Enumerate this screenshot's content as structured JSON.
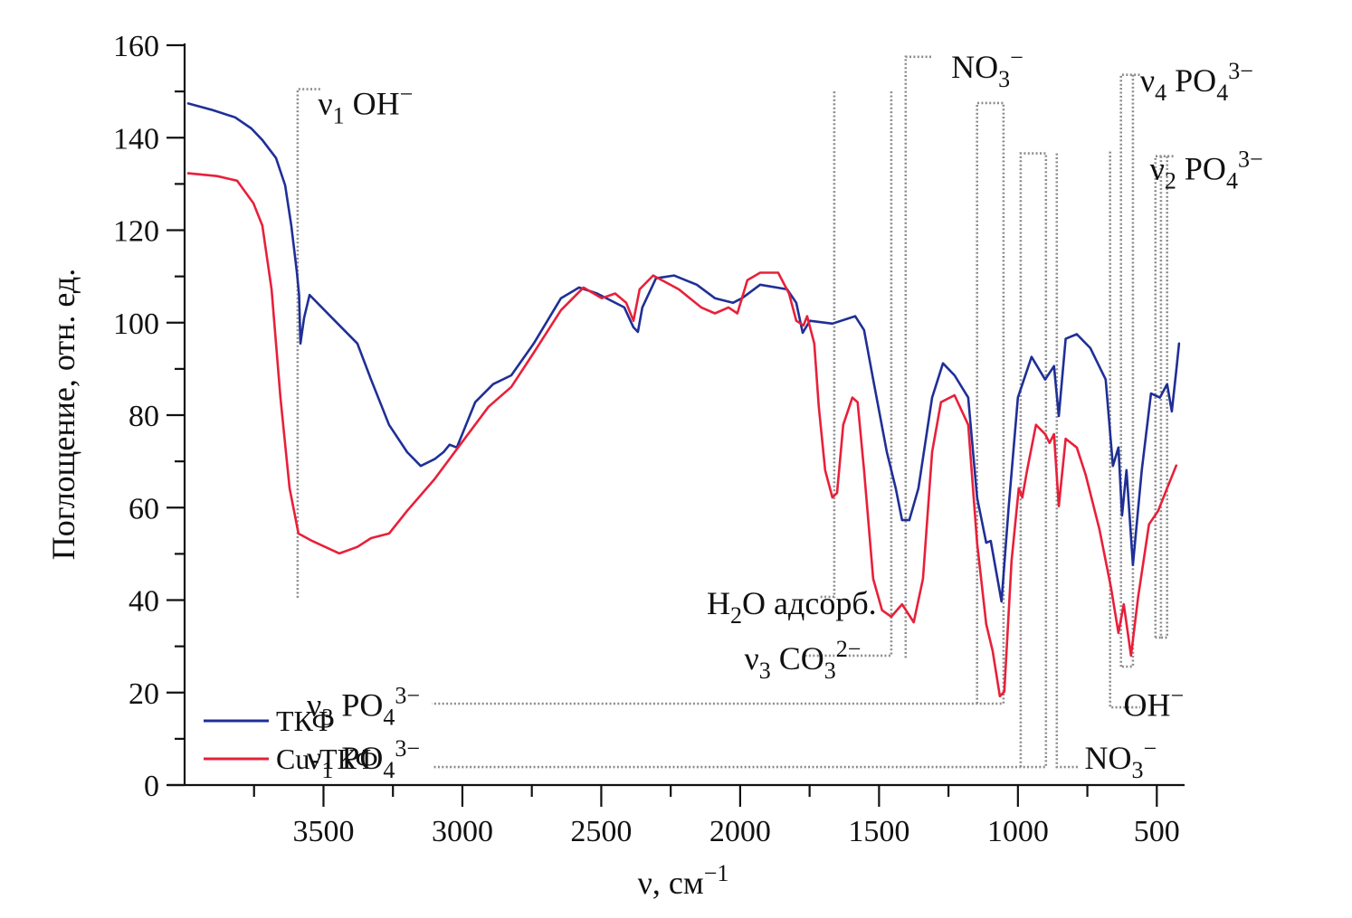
{
  "chart_data": {
    "type": "line",
    "title": "",
    "xlabel": "ν, см",
    "xlabel_sup": "−1",
    "ylabel": "Поглощение, отн. ед.",
    "xlim": [
      4000,
      400
    ],
    "ylim": [
      0,
      160
    ],
    "x_reversed": true,
    "grid": false,
    "legend_position": "bottom-left",
    "x_ticks_major": [
      3500,
      3000,
      2500,
      2000,
      1500,
      1000,
      500
    ],
    "x_ticks_minor": [
      3750,
      3250,
      2750,
      2250,
      1750,
      1250,
      750
    ],
    "x_tick_labels": [
      "3500",
      "3000",
      "2500",
      "2000",
      "1500",
      "1000",
      "500"
    ],
    "y_ticks_major": [
      0,
      20,
      40,
      60,
      80,
      100,
      120,
      140,
      160
    ],
    "y_ticks_minor": [
      10,
      30,
      50,
      70,
      90,
      110,
      130,
      150
    ],
    "y_tick_labels": [
      "0",
      "20",
      "40",
      "60",
      "80",
      "100",
      "120",
      "140",
      "160"
    ],
    "series": [
      {
        "name": "ТКФ",
        "color": "#1f2f96",
        "x": [
          3987,
          3900,
          3818,
          3760,
          3720,
          3671,
          3638,
          3616,
          3596,
          3588,
          3583,
          3570,
          3550,
          3459,
          3378,
          3329,
          3264,
          3199,
          3150,
          3100,
          3068,
          3046,
          3020,
          2954,
          2889,
          2824,
          2743,
          2645,
          2580,
          2515,
          2417,
          2384,
          2368,
          2352,
          2303,
          2238,
          2156,
          2091,
          2026,
          1993,
          1928,
          1831,
          1798,
          1775,
          1749,
          1668,
          1586,
          1554,
          1521,
          1472,
          1440,
          1417,
          1391,
          1358,
          1309,
          1270,
          1228,
          1179,
          1147,
          1114,
          1098,
          1059,
          1033,
          1000,
          951,
          902,
          870,
          853,
          828,
          788,
          739,
          684,
          658,
          638,
          625,
          609,
          586,
          554,
          521,
          489,
          463,
          446,
          430,
          420
        ],
        "y": [
          147.4,
          146,
          144.4,
          142,
          139.5,
          135.6,
          129.7,
          121,
          111,
          106,
          95.5,
          101,
          106,
          100.4,
          95.5,
          87.7,
          77.9,
          72,
          69,
          70.5,
          72,
          73.6,
          73,
          82.8,
          86.7,
          88.6,
          95.5,
          105.3,
          107.6,
          106.3,
          103.3,
          99,
          98,
          103.3,
          109.6,
          110.2,
          108.2,
          105.3,
          104.3,
          105.3,
          108.2,
          107.2,
          104.3,
          97.8,
          100.4,
          99.8,
          101.4,
          98.4,
          87.7,
          72,
          64.2,
          57.3,
          57.3,
          64.2,
          83.8,
          91.2,
          88.6,
          83.8,
          62.2,
          52.4,
          52.8,
          39.7,
          60.3,
          83.8,
          92.6,
          87.7,
          90.6,
          79.8,
          96.5,
          97.5,
          94.5,
          87.7,
          69,
          73,
          58.3,
          68.1,
          47.6,
          68.1,
          84.7,
          83.8,
          86.7,
          80.8,
          89.6,
          95.5
        ]
      },
      {
        "name": "Cu-ТКФ",
        "color": "#e8203a",
        "x": [
          3987,
          3883,
          3811,
          3752,
          3720,
          3687,
          3655,
          3622,
          3590,
          3541,
          3443,
          3378,
          3329,
          3264,
          3199,
          3101,
          3003,
          2906,
          2824,
          2743,
          2645,
          2564,
          2498,
          2450,
          2410,
          2384,
          2362,
          2313,
          2221,
          2140,
          2091,
          2042,
          2010,
          1974,
          1928,
          1863,
          1824,
          1798,
          1772,
          1759,
          1733,
          1717,
          1694,
          1668,
          1651,
          1629,
          1596,
          1577,
          1554,
          1521,
          1489,
          1456,
          1417,
          1375,
          1342,
          1309,
          1277,
          1228,
          1179,
          1147,
          1114,
          1091,
          1065,
          1049,
          1023,
          997,
          984,
          967,
          935,
          902,
          886,
          870,
          853,
          828,
          788,
          756,
          707,
          665,
          638,
          619,
          593,
          567,
          528,
          495,
          463,
          430
        ],
        "y": [
          132.3,
          131.7,
          130.7,
          125.8,
          121,
          107.2,
          83.8,
          64.2,
          54.4,
          52.8,
          50.1,
          51.5,
          53.4,
          54.4,
          59.3,
          66.1,
          74,
          81.8,
          86.1,
          93.5,
          102.7,
          107.6,
          105.3,
          106.3,
          104.3,
          100.4,
          107.2,
          110.2,
          107.2,
          103.3,
          102,
          103.3,
          102,
          109.2,
          110.8,
          110.8,
          106.3,
          100.4,
          99.4,
          101.4,
          95.5,
          81.8,
          68.1,
          62.2,
          63.2,
          77.9,
          83.8,
          82.8,
          68.1,
          44.6,
          37.8,
          36.4,
          39.1,
          35.2,
          44.6,
          72,
          82.8,
          84.3,
          77.9,
          52.4,
          34.8,
          29,
          19.2,
          20.2,
          48.5,
          64.2,
          62.2,
          68.1,
          77.9,
          75.9,
          74,
          75.9,
          60.3,
          74.9,
          73,
          67.1,
          55.4,
          42.7,
          32.9,
          39.1,
          28,
          40.7,
          56.4,
          59.3,
          64.2,
          69.1
        ]
      }
    ],
    "annotations": [
      {
        "id": "nu1-oh",
        "parts": [
          {
            "t": "ν"
          },
          {
            "t": "1",
            "sub": true
          },
          {
            "t": " OH"
          },
          {
            "t": "−",
            "sup": true
          }
        ],
        "label_at": [
          3520,
          145
        ],
        "guides": [
          [
            [
              3593,
              40.5
            ],
            [
              3593,
              150.5
            ],
            [
              3510,
              150.5
            ]
          ]
        ]
      },
      {
        "id": "no3-top",
        "parts": [
          {
            "t": "NO"
          },
          {
            "t": "3",
            "sub": true
          },
          {
            "t": "−",
            "sup": true
          }
        ],
        "label_at": [
          1240,
          153
        ],
        "guides": [
          [
            [
              1404,
              27.5
            ],
            [
              1404,
              157.5
            ],
            [
              1310,
              157.5
            ]
          ]
        ]
      },
      {
        "id": "h2o-adsorb",
        "parts": [
          {
            "t": "H"
          },
          {
            "t": "2",
            "sub": true
          },
          {
            "t": "O адсорб."
          }
        ],
        "label_at": [
          2120,
          37
        ],
        "guides": [
          [
            [
              1661,
              150
            ],
            [
              1661,
              40.7
            ],
            [
              1716,
              40.7
            ]
          ]
        ]
      },
      {
        "id": "nu3-co3",
        "parts": [
          {
            "t": "ν"
          },
          {
            "t": "3",
            "sub": true
          },
          {
            "t": " CO"
          },
          {
            "t": "3",
            "sub": true
          },
          {
            "t": "2−",
            "sup": true
          }
        ],
        "label_at": [
          1985,
          25
        ],
        "guides": [
          [
            [
              1456,
              150
            ],
            [
              1456,
              28
            ],
            [
              1770,
              28
            ]
          ]
        ]
      },
      {
        "id": "nu3-po4",
        "parts": [
          {
            "t": "ν"
          },
          {
            "t": "3",
            "sub": true
          },
          {
            "t": " PO"
          },
          {
            "t": "4",
            "sub": true
          },
          {
            "t": "3−",
            "sup": true
          }
        ],
        "label_at": [
          3560,
          15
        ],
        "guides": [
          [
            [
              1147,
              17.6
            ],
            [
              1147,
              147.5
            ],
            [
              1052,
              147.5
            ],
            [
              1052,
              17.6
            ],
            [
              3110,
              17.6
            ]
          ]
        ]
      },
      {
        "id": "nu1-po4",
        "parts": [
          {
            "t": "ν"
          },
          {
            "t": "1",
            "sub": true
          },
          {
            "t": " PO"
          },
          {
            "t": "4",
            "sub": true
          },
          {
            "t": "3−",
            "sup": true
          }
        ],
        "label_at": [
          3560,
          3.5
        ],
        "guides": [
          [
            [
              990,
              3.9
            ],
            [
              990,
              136.6
            ],
            [
              899,
              136.6
            ],
            [
              899,
              3.9
            ],
            [
              3110,
              3.9
            ]
          ]
        ]
      },
      {
        "id": "no3-bottom",
        "parts": [
          {
            "t": "NO"
          },
          {
            "t": "3",
            "sub": true
          },
          {
            "t": "−",
            "sup": true
          }
        ],
        "label_at": [
          760,
          3.5
        ],
        "guides": [
          [
            [
              860,
              136.6
            ],
            [
              860,
              3.9
            ],
            [
              782,
              3.9
            ]
          ]
        ]
      },
      {
        "id": "oh-bottom",
        "parts": [
          {
            "t": "OH"
          },
          {
            "t": "−",
            "sup": true
          }
        ],
        "label_at": [
          620,
          15
        ],
        "guides": [
          [
            [
              668,
              137
            ],
            [
              668,
              16.8
            ],
            [
              560,
              16.8
            ]
          ]
        ]
      },
      {
        "id": "nu4-po4",
        "parts": [
          {
            "t": "ν"
          },
          {
            "t": "4",
            "sub": true
          },
          {
            "t": " PO"
          },
          {
            "t": "4",
            "sub": true
          },
          {
            "t": "3−",
            "sup": true
          }
        ],
        "label_at": [
          560,
          150
        ],
        "guides": [
          [
            [
              629,
              25.6
            ],
            [
              629,
              153.6
            ],
            [
              560,
              153.6
            ]
          ],
          [
            [
              586,
              153.6
            ],
            [
              586,
              25.6
            ],
            [
              629,
              25.6
            ]
          ]
        ]
      },
      {
        "id": "nu2-po4",
        "parts": [
          {
            "t": "ν"
          },
          {
            "t": "2",
            "sub": true
          },
          {
            "t": " PO"
          },
          {
            "t": "4",
            "sub": true
          },
          {
            "t": "3−",
            "sup": true
          }
        ],
        "label_at": [
          525,
          131
        ],
        "guides": [
          [
            [
              505,
              31.9
            ],
            [
              505,
              136
            ],
            [
              440,
              136
            ]
          ],
          [
            [
              485,
              136
            ],
            [
              485,
              31.9
            ],
            [
              505,
              31.9
            ]
          ],
          [
            [
              463,
              136
            ],
            [
              463,
              31.9
            ],
            [
              485,
              31.9
            ]
          ]
        ]
      }
    ]
  }
}
